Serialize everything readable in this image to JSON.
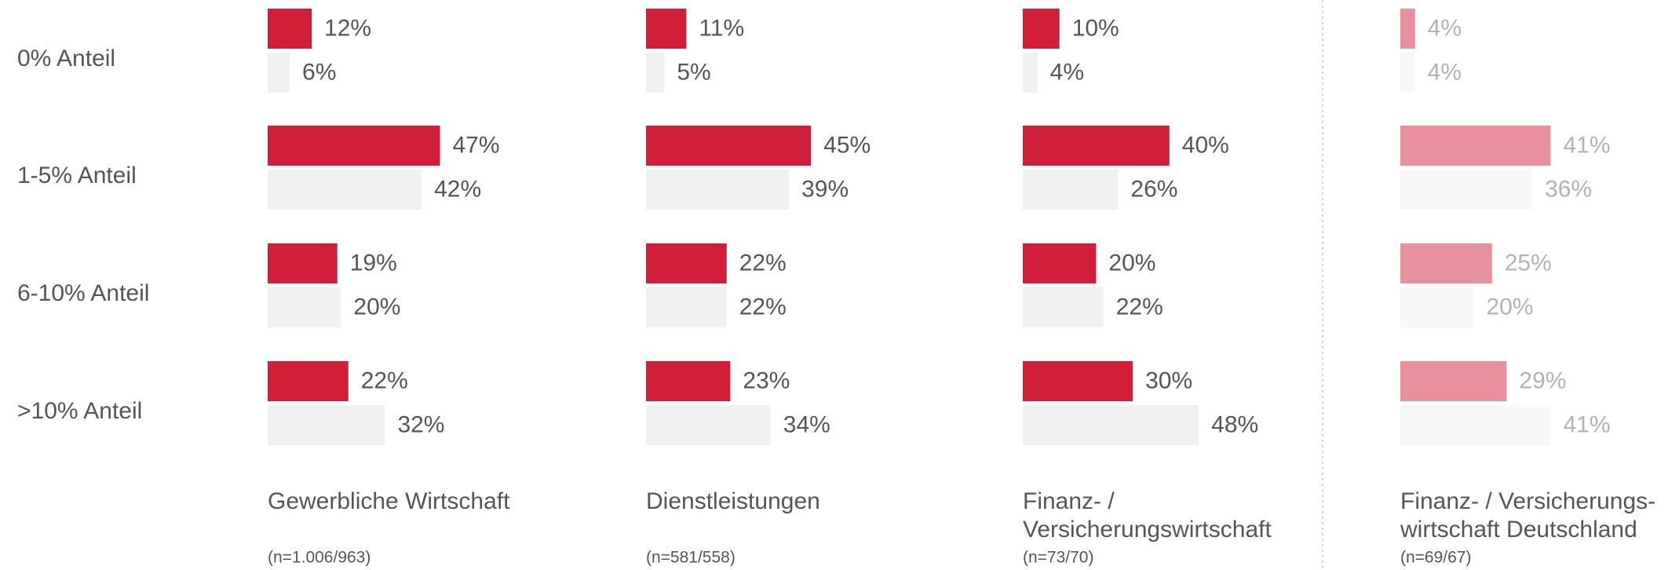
{
  "chart_data": {
    "type": "bar",
    "orientation": "horizontal",
    "xlim": [
      0,
      100
    ],
    "categories": [
      "0% Anteil",
      "1-5% Anteil",
      "6-10% Anteil",
      ">10% Anteil"
    ],
    "panels": [
      {
        "title": [
          "Gewerbliche Wirtschaft"
        ],
        "note": "(n=1.006/963)",
        "label_color": "#555555",
        "series": [
          {
            "color": "#d11f3a",
            "values": [
              12,
              47,
              19,
              22
            ],
            "value_labels": [
              "12%",
              "47%",
              "19%",
              "22%"
            ]
          },
          {
            "color": "#f0f0f0",
            "values": [
              6,
              42,
              20,
              32
            ],
            "value_labels": [
              "6%",
              "42%",
              "20%",
              "32%"
            ]
          }
        ]
      },
      {
        "title": [
          "Dienstleistungen"
        ],
        "note": "(n=581/558)",
        "label_color": "#555555",
        "series": [
          {
            "color": "#d11f3a",
            "values": [
              11,
              45,
              22,
              23
            ],
            "value_labels": [
              "11%",
              "45%",
              "22%",
              "23%"
            ]
          },
          {
            "color": "#f0f0f0",
            "values": [
              5,
              39,
              22,
              34
            ],
            "value_labels": [
              "5%",
              "39%",
              "22%",
              "34%"
            ]
          }
        ]
      },
      {
        "title": [
          "Finanz- /",
          "Versicherungswirtschaft"
        ],
        "note": "(n=73/70)",
        "label_color": "#555555",
        "series": [
          {
            "color": "#d11f3a",
            "values": [
              10,
              40,
              20,
              30
            ],
            "value_labels": [
              "10%",
              "40%",
              "20%",
              "30%"
            ]
          },
          {
            "color": "#f0f0f0",
            "values": [
              4,
              26,
              22,
              48
            ],
            "value_labels": [
              "4%",
              "26%",
              "22%",
              "48%"
            ]
          }
        ]
      },
      {
        "title": [
          "Finanz- / Versicherungs-",
          "wirtschaft Deutschland"
        ],
        "note": "(n=69/67)",
        "label_color": "#b3b3b3",
        "series": [
          {
            "color": "#e8909c",
            "values": [
              4,
              41,
              25,
              29
            ],
            "value_labels": [
              "4%",
              "41%",
              "25%",
              "29%"
            ]
          },
          {
            "color": "#f7f7f7",
            "values": [
              4,
              36,
              20,
              41
            ],
            "value_labels": [
              "4%",
              "36%",
              "20%",
              "41%"
            ]
          }
        ]
      }
    ]
  }
}
